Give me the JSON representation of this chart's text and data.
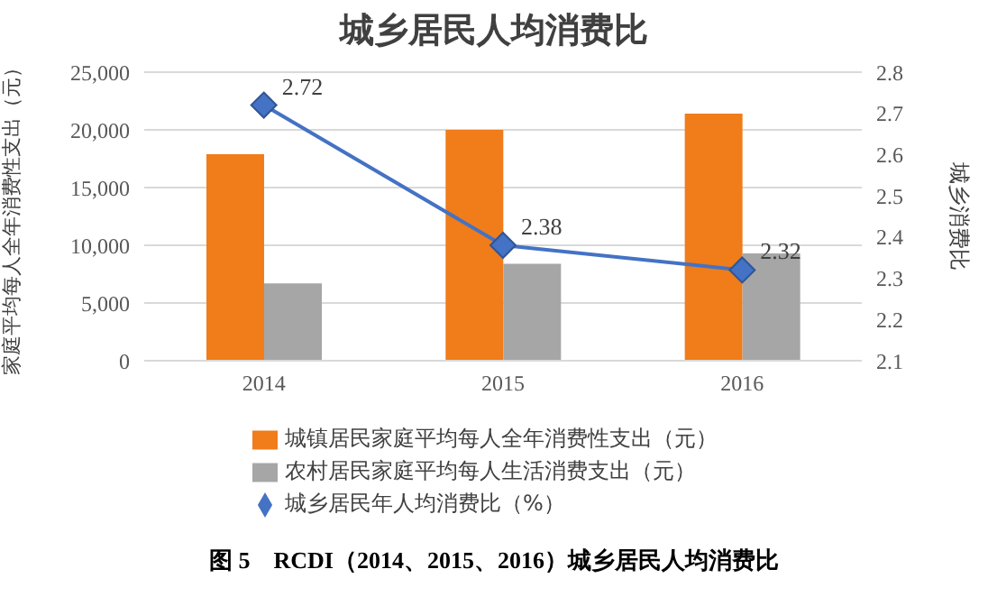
{
  "chart_data": {
    "type": "bar",
    "title": "城乡居民人均消费比",
    "categories": [
      "2014",
      "2015",
      "2016"
    ],
    "series": [
      {
        "name": "城镇居民家庭平均每人全年消费性支出（元）",
        "color": "#f07c1a",
        "values": [
          17900,
          20000,
          21400
        ]
      },
      {
        "name": "农村居民家庭平均每人生活消费支出（元）",
        "color": "#a6a6a6",
        "values": [
          6700,
          8400,
          9300
        ]
      },
      {
        "name": "城乡居民年人均消费比（%）",
        "type": "line",
        "axis": "y2",
        "color": "#4472c4",
        "values": [
          2.72,
          2.38,
          2.32
        ],
        "value_labels": [
          "2.72",
          "2.38",
          "2.32"
        ]
      }
    ],
    "ylabel": "家庭平均每人全年消费性支出（元）",
    "y2label": "城乡消费比",
    "ylim": [
      0,
      25000
    ],
    "yticks": [
      {
        "value": 0,
        "label": "0"
      },
      {
        "value": 5000,
        "label": "5,000"
      },
      {
        "value": 10000,
        "label": "10,000"
      },
      {
        "value": 15000,
        "label": "15,000"
      },
      {
        "value": 20000,
        "label": "20,000"
      },
      {
        "value": 25000,
        "label": "25,000"
      }
    ],
    "y2lim": [
      2.1,
      2.8
    ],
    "y2ticks": [
      2.1,
      2.2,
      2.3,
      2.4,
      2.5,
      2.6,
      2.7,
      2.8
    ],
    "grid": "y",
    "legend": "bottom",
    "marker": "diamond",
    "line_style": "solid",
    "annotations": [
      "图 5　RCDI（2014、2015、2016）城乡居民人均消费比"
    ]
  }
}
